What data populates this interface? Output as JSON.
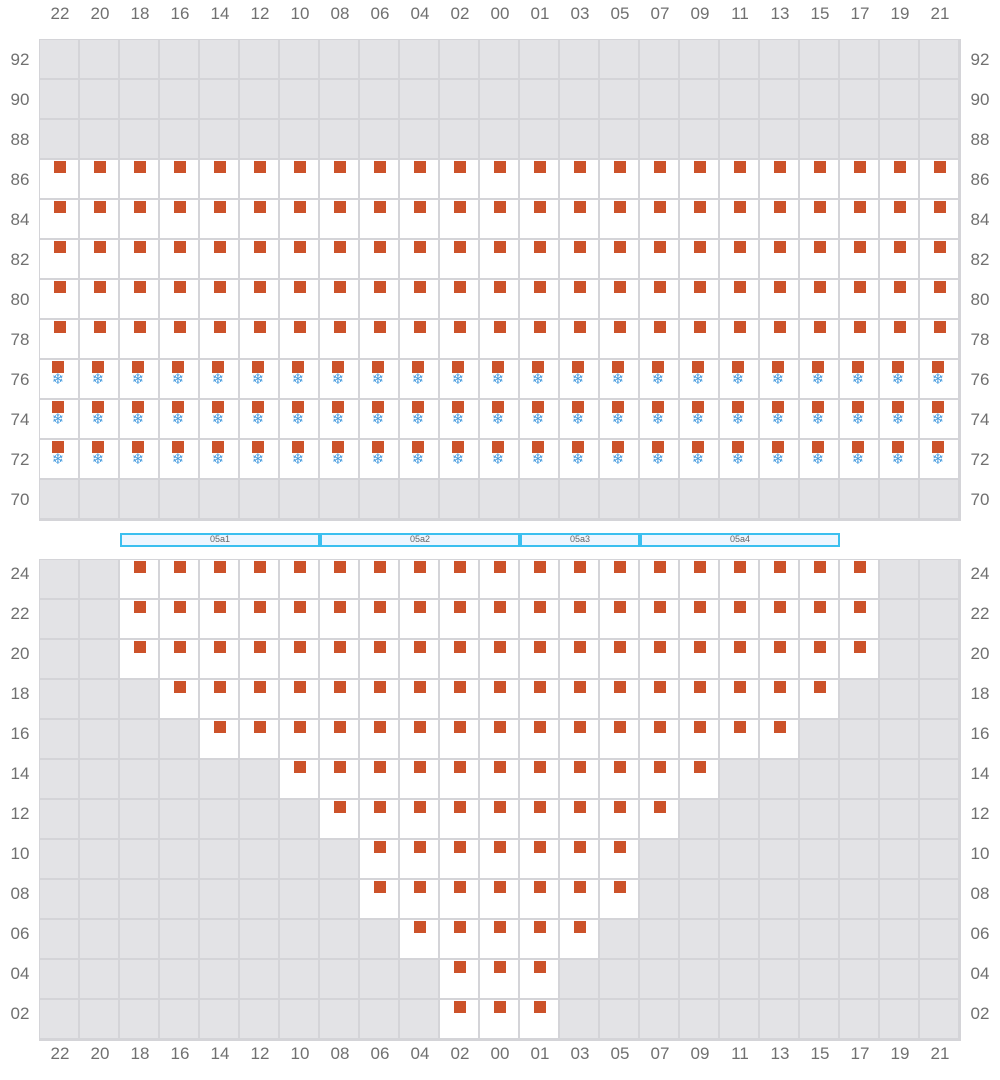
{
  "columns": [
    "22",
    "20",
    "18",
    "16",
    "14",
    "12",
    "10",
    "08",
    "06",
    "04",
    "02",
    "00",
    "01",
    "03",
    "05",
    "07",
    "09",
    "11",
    "13",
    "15",
    "17",
    "19",
    "21"
  ],
  "top_section": {
    "rows": [
      {
        "label": "92",
        "state": "blocked"
      },
      {
        "label": "90",
        "state": "blocked"
      },
      {
        "label": "88",
        "state": "blocked"
      },
      {
        "label": "86",
        "state": "occupied"
      },
      {
        "label": "84",
        "state": "occupied"
      },
      {
        "label": "82",
        "state": "occupied"
      },
      {
        "label": "80",
        "state": "occupied"
      },
      {
        "label": "78",
        "state": "occupied"
      },
      {
        "label": "76",
        "state": "occupied-refrigerated"
      },
      {
        "label": "74",
        "state": "occupied-refrigerated"
      },
      {
        "label": "72",
        "state": "occupied-refrigerated"
      },
      {
        "label": "70",
        "state": "blocked"
      }
    ]
  },
  "zones": [
    {
      "label": "05a1",
      "from": "18",
      "to": "10"
    },
    {
      "label": "05a2",
      "from": "08",
      "to": "00"
    },
    {
      "label": "05a3",
      "from": "01",
      "to": "05"
    },
    {
      "label": "05a4",
      "from": "07",
      "to": "15"
    }
  ],
  "bottom_section": {
    "rows": [
      {
        "label": "24",
        "occupied_from": "18",
        "occupied_to": "17"
      },
      {
        "label": "22",
        "occupied_from": "18",
        "occupied_to": "17"
      },
      {
        "label": "20",
        "occupied_from": "18",
        "occupied_to": "17"
      },
      {
        "label": "18",
        "occupied_from": "16",
        "occupied_to": "15"
      },
      {
        "label": "16",
        "occupied_from": "14",
        "occupied_to": "13"
      },
      {
        "label": "14",
        "occupied_from": "10",
        "occupied_to": "09"
      },
      {
        "label": "12",
        "occupied_from": "08",
        "occupied_to": "07"
      },
      {
        "label": "10",
        "occupied_from": "06",
        "occupied_to": "05"
      },
      {
        "label": "08",
        "occupied_from": "06",
        "occupied_to": "05"
      },
      {
        "label": "06",
        "occupied_from": "04",
        "occupied_to": "03"
      },
      {
        "label": "04",
        "occupied_from": "02",
        "occupied_to": "01"
      },
      {
        "label": "02",
        "occupied_from": "02",
        "occupied_to": "01"
      }
    ]
  },
  "icons": {
    "occupied": "orange-square-icon",
    "refrigerated": "snowflake-icon",
    "snowflake_glyph": "❄"
  },
  "colors": {
    "occupied": "#cc5229",
    "refrigerated": "#4a9ee0",
    "blocked": "#e3e3e6",
    "zone_border": "#3bbfef"
  }
}
